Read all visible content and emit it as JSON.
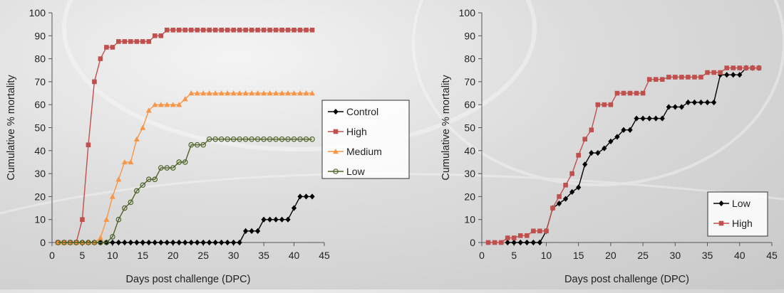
{
  "chart_data": [
    {
      "type": "line",
      "title": "",
      "xlabel": "Days post challenge (DPC)",
      "ylabel": "Cumulative % mortality",
      "xlim": [
        0,
        45
      ],
      "ylim": [
        0,
        100
      ],
      "xticks": [
        0,
        5,
        10,
        15,
        20,
        25,
        30,
        35,
        40,
        45
      ],
      "yticks": [
        0,
        10,
        20,
        30,
        40,
        50,
        60,
        70,
        80,
        90,
        100
      ],
      "grid": false,
      "legend_position": "right",
      "series": [
        {
          "name": "Control",
          "color": "#000000",
          "marker": "diamond",
          "x": [
            1,
            2,
            3,
            4,
            5,
            6,
            7,
            8,
            9,
            10,
            11,
            12,
            13,
            14,
            15,
            16,
            17,
            18,
            19,
            20,
            21,
            22,
            23,
            24,
            25,
            26,
            27,
            28,
            29,
            30,
            31,
            32,
            33,
            34,
            35,
            36,
            37,
            38,
            39,
            40,
            41,
            42,
            43
          ],
          "y": [
            0,
            0,
            0,
            0,
            0,
            0,
            0,
            0,
            0,
            0,
            0,
            0,
            0,
            0,
            0,
            0,
            0,
            0,
            0,
            0,
            0,
            0,
            0,
            0,
            0,
            0,
            0,
            0,
            0,
            0,
            0,
            5,
            5,
            5,
            10,
            10,
            10,
            10,
            10,
            15,
            20,
            20,
            20
          ]
        },
        {
          "name": "High",
          "color": "#c0504d",
          "marker": "square",
          "x": [
            1,
            2,
            3,
            4,
            5,
            6,
            7,
            8,
            9,
            10,
            11,
            12,
            13,
            14,
            15,
            16,
            17,
            18,
            19,
            20,
            21,
            22,
            23,
            24,
            25,
            26,
            27,
            28,
            29,
            30,
            31,
            32,
            33,
            34,
            35,
            36,
            37,
            38,
            39,
            40,
            41,
            42,
            43
          ],
          "y": [
            0,
            0,
            0,
            0,
            10,
            42.5,
            70,
            80,
            85,
            85,
            87.5,
            87.5,
            87.5,
            87.5,
            87.5,
            87.5,
            90,
            90,
            92.5,
            92.5,
            92.5,
            92.5,
            92.5,
            92.5,
            92.5,
            92.5,
            92.5,
            92.5,
            92.5,
            92.5,
            92.5,
            92.5,
            92.5,
            92.5,
            92.5,
            92.5,
            92.5,
            92.5,
            92.5,
            92.5,
            92.5,
            92.5,
            92.5
          ]
        },
        {
          "name": "Medium",
          "color": "#f79646",
          "marker": "triangle",
          "x": [
            1,
            2,
            3,
            4,
            5,
            6,
            7,
            8,
            9,
            10,
            11,
            12,
            13,
            14,
            15,
            16,
            17,
            18,
            19,
            20,
            21,
            22,
            23,
            24,
            25,
            26,
            27,
            28,
            29,
            30,
            31,
            32,
            33,
            34,
            35,
            36,
            37,
            38,
            39,
            40,
            41,
            42,
            43
          ],
          "y": [
            0,
            0,
            0,
            0,
            0,
            0,
            0,
            2,
            10,
            20,
            27.5,
            35,
            35,
            45,
            50,
            57.5,
            60,
            60,
            60,
            60,
            60,
            62.5,
            65,
            65,
            65,
            65,
            65,
            65,
            65,
            65,
            65,
            65,
            65,
            65,
            65,
            65,
            65,
            65,
            65,
            65,
            65,
            65,
            65
          ]
        },
        {
          "name": "Low",
          "color": "#4f6228",
          "marker": "circle",
          "x": [
            1,
            2,
            3,
            4,
            5,
            6,
            7,
            8,
            9,
            10,
            11,
            12,
            13,
            14,
            15,
            16,
            17,
            18,
            19,
            20,
            21,
            22,
            23,
            24,
            25,
            26,
            27,
            28,
            29,
            30,
            31,
            32,
            33,
            34,
            35,
            36,
            37,
            38,
            39,
            40,
            41,
            42,
            43
          ],
          "y": [
            0,
            0,
            0,
            0,
            0,
            0,
            0,
            0,
            0,
            2.5,
            10,
            15,
            17.5,
            22.5,
            25,
            27.5,
            27.5,
            32.5,
            32.5,
            32.5,
            35,
            35,
            42.5,
            42.5,
            42.5,
            45,
            45,
            45,
            45,
            45,
            45,
            45,
            45,
            45,
            45,
            45,
            45,
            45,
            45,
            45,
            45,
            45,
            45
          ]
        }
      ]
    },
    {
      "type": "line",
      "title": "",
      "xlabel": "Days post challenge (DPC)",
      "ylabel": "Cumulative % mortality",
      "xlim": [
        0,
        45
      ],
      "ylim": [
        0,
        100
      ],
      "xticks": [
        0,
        5,
        10,
        15,
        20,
        25,
        30,
        35,
        40,
        45
      ],
      "yticks": [
        0,
        10,
        20,
        30,
        40,
        50,
        60,
        70,
        80,
        90,
        100
      ],
      "grid": false,
      "legend_position": "bottom-right",
      "series": [
        {
          "name": "Low",
          "color": "#000000",
          "marker": "diamond",
          "x": [
            4,
            5,
            6,
            7,
            8,
            9,
            10,
            11,
            12,
            13,
            14,
            15,
            16,
            17,
            18,
            19,
            20,
            21,
            22,
            23,
            24,
            25,
            26,
            27,
            28,
            29,
            30,
            31,
            32,
            33,
            34,
            35,
            36,
            37,
            38,
            39,
            40,
            41,
            42,
            43
          ],
          "y": [
            0,
            0,
            0,
            0,
            0,
            0,
            5,
            15,
            17,
            19,
            22,
            24,
            34,
            39,
            39,
            41,
            44,
            46,
            49,
            49,
            54,
            54,
            54,
            54,
            54,
            59,
            59,
            59,
            61,
            61,
            61,
            61,
            61,
            73,
            73,
            73,
            73,
            76,
            76,
            76
          ]
        },
        {
          "name": "High",
          "color": "#c0504d",
          "marker": "square",
          "x": [
            1,
            2,
            3,
            4,
            5,
            6,
            7,
            8,
            9,
            10,
            11,
            12,
            13,
            14,
            15,
            16,
            17,
            18,
            19,
            20,
            21,
            22,
            23,
            24,
            25,
            26,
            27,
            28,
            29,
            30,
            31,
            32,
            33,
            34,
            35,
            36,
            37,
            38,
            39,
            40,
            41,
            42,
            43
          ],
          "y": [
            0,
            0,
            0,
            2,
            2,
            3,
            3,
            5,
            5,
            5,
            15,
            20,
            25,
            30,
            38,
            45,
            49,
            60,
            60,
            60,
            65,
            65,
            65,
            65,
            65,
            71,
            71,
            71,
            72,
            72,
            72,
            72,
            72,
            72,
            74,
            74,
            74,
            76,
            76,
            76,
            76,
            76,
            76
          ]
        }
      ]
    }
  ]
}
